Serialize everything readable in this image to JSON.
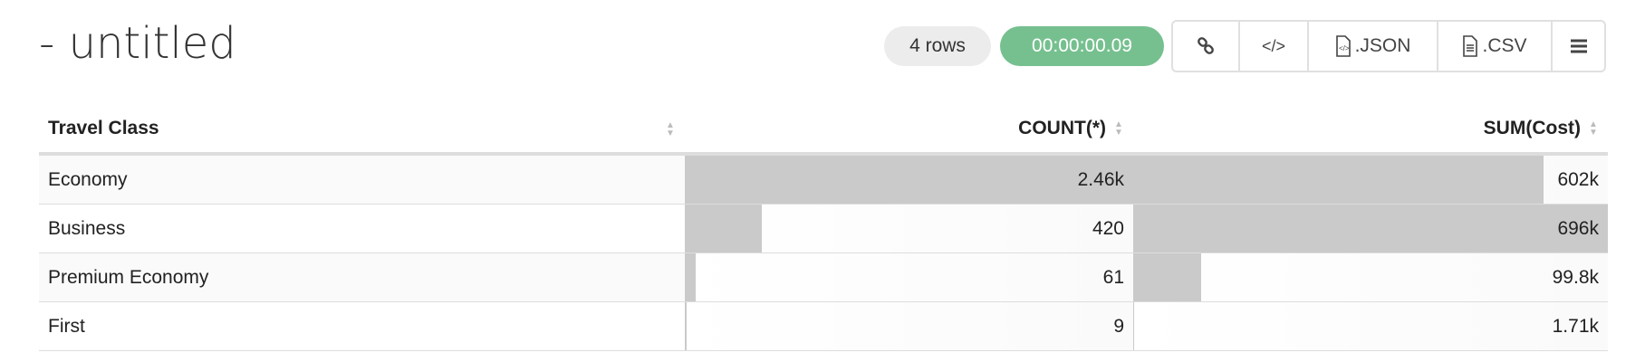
{
  "title": "- untitled",
  "row_count": "4 rows",
  "timer": "00:00:00.09",
  "colors": {
    "timer": "#76c08f",
    "bar": "#cacaca"
  },
  "toolbar": {
    "link_icon": "link-icon",
    "embed_icon": "code-icon",
    "json_label": ".JSON",
    "csv_label": ".CSV",
    "menu_icon": "hamburger-menu-icon"
  },
  "table": {
    "columns": [
      "Travel Class",
      "COUNT(*)",
      "SUM(Cost)"
    ],
    "rows": [
      {
        "class": "Economy",
        "count": "2.46k",
        "count_value": 2460,
        "sum": "602k",
        "sum_value": 602000
      },
      {
        "class": "Business",
        "count": "420",
        "count_value": 420,
        "sum": "696k",
        "sum_value": 696000
      },
      {
        "class": "Premium Economy",
        "count": "61",
        "count_value": 61,
        "sum": "99.8k",
        "sum_value": 99800
      },
      {
        "class": "First",
        "count": "9",
        "count_value": 9,
        "sum": "1.71k",
        "sum_value": 1710
      }
    ]
  }
}
